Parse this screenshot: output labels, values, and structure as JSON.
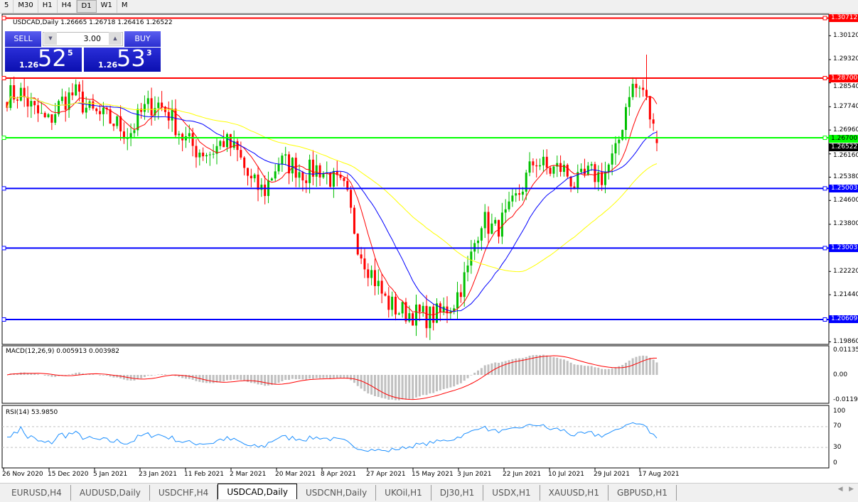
{
  "timeframes": [
    {
      "label": "5",
      "active": false
    },
    {
      "label": "M30",
      "active": false
    },
    {
      "label": "H1",
      "active": false
    },
    {
      "label": "H4",
      "active": false
    },
    {
      "label": "D1",
      "active": true
    },
    {
      "label": "W1",
      "active": false
    },
    {
      "label": "MN",
      "active": false
    }
  ],
  "chart": {
    "title": "USDCAD,Daily  1.26665 1.26718 1.26416 1.26522"
  },
  "trade_panel": {
    "sell_label": "SELL",
    "buy_label": "BUY",
    "lots": "3.00",
    "sell": {
      "big": "1.26",
      "pips": "52",
      "frac": "5"
    },
    "buy": {
      "big": "1.26",
      "pips": "53",
      "frac": "3"
    }
  },
  "price_axis": [
    "1.30120",
    "1.29320",
    "1.28540",
    "1.27740",
    "1.26960",
    "1.26160",
    "1.25380",
    "1.24600",
    "1.23800",
    "1.22220",
    "1.21440",
    "1.19860"
  ],
  "levels": [
    {
      "price": 1.30712,
      "label": "1.30712",
      "color": "#ff0000"
    },
    {
      "price": 1.287,
      "label": "1.28700",
      "color": "#ff0000"
    },
    {
      "price": 1.267,
      "label": "1.26700",
      "color": "#00ff00"
    },
    {
      "price": 1.25003,
      "label": "1.25003",
      "color": "#0000ff"
    },
    {
      "price": 1.23003,
      "label": "1.23003",
      "color": "#0000ff"
    },
    {
      "price": 1.20609,
      "label": "1.20609",
      "color": "#0000ff"
    }
  ],
  "current_price": "1.26522",
  "macd": {
    "title": "MACD(12,26,9) 0.005913 0.003982",
    "axis": [
      "0.01135",
      "0.00",
      "-0.01190"
    ]
  },
  "rsi": {
    "title": "RSI(14) 53.9850",
    "axis": [
      "100",
      "70",
      "30",
      "0"
    ]
  },
  "date_axis": [
    "26 Nov 2020",
    "15 Dec 2020",
    "5 Jan 2021",
    "23 Jan 2021",
    "11 Feb 2021",
    "2 Mar 2021",
    "20 Mar 2021",
    "8 Apr 2021",
    "27 Apr 2021",
    "15 May 2021",
    "3 Jun 2021",
    "22 Jun 2021",
    "10 Jul 2021",
    "29 Jul 2021",
    "17 Aug 2021"
  ],
  "tabs": [
    {
      "label": "EURUSD,H4",
      "active": false
    },
    {
      "label": "AUDUSD,Daily",
      "active": false
    },
    {
      "label": "USDCHF,H4",
      "active": false
    },
    {
      "label": "USDCAD,Daily",
      "active": true
    },
    {
      "label": "USDCNH,Daily",
      "active": false
    },
    {
      "label": "UKOil,H1",
      "active": false
    },
    {
      "label": "DJ30,H1",
      "active": false
    },
    {
      "label": "USDX,H1",
      "active": false
    },
    {
      "label": "XAUUSD,H1",
      "active": false
    },
    {
      "label": "GBPUSD,H1",
      "active": false
    }
  ],
  "chart_data": {
    "type": "candlestick",
    "symbol": "USDCAD",
    "timeframe": "Daily",
    "ylim": [
      1.1986,
      1.30712
    ],
    "close_path": [
      1.281,
      1.282,
      1.276,
      1.272,
      1.279,
      1.282,
      1.276,
      1.274,
      1.272,
      1.268,
      1.276,
      1.279,
      1.275,
      1.267,
      1.263,
      1.262,
      1.266,
      1.262,
      1.252,
      1.249,
      1.259,
      1.258,
      1.255,
      1.257,
      1.253,
      1.249,
      1.23,
      1.221,
      1.212,
      1.209,
      1.208,
      1.207,
      1.208,
      1.212,
      1.222,
      1.24,
      1.236,
      1.241,
      1.25,
      1.26,
      1.256,
      1.257,
      1.251,
      1.255,
      1.254,
      1.262,
      1.284,
      1.283,
      1.26522
    ],
    "moving_averages": [
      {
        "color": "#ff0000"
      },
      {
        "color": "#0000ff"
      },
      {
        "color": "#ffff00"
      }
    ],
    "bull_color": "#00c000",
    "bear_color": "#ff0000"
  }
}
